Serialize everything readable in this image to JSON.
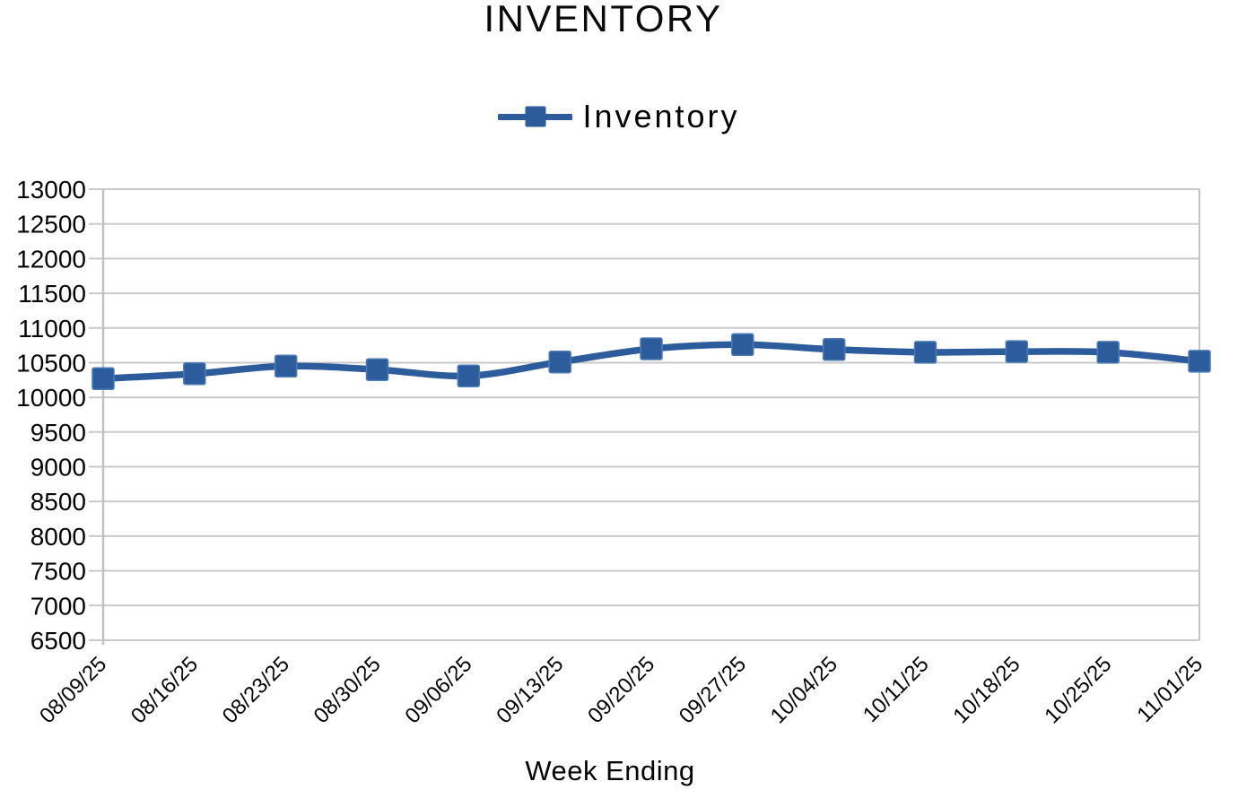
{
  "colors": {
    "series": "#2D5C9C",
    "marker_border": "#4C7CB5",
    "gridline": "#C9C9C9",
    "axis": "#C2C2C2",
    "text": "#050505"
  },
  "chart_data": {
    "type": "line",
    "title": "INVENTORY",
    "xlabel": "Week Ending",
    "ylabel": "",
    "categories": [
      "08/09/25",
      "08/16/25",
      "08/23/25",
      "08/30/25",
      "09/06/25",
      "09/13/25",
      "09/20/25",
      "09/27/25",
      "10/04/25",
      "10/11/25",
      "10/18/25",
      "10/25/25",
      "11/01/25"
    ],
    "series": [
      {
        "name": "Inventory",
        "values": [
          10270,
          10340,
          10450,
          10400,
          10310,
          10510,
          10700,
          10760,
          10690,
          10650,
          10660,
          10650,
          10520
        ]
      }
    ],
    "ylim": [
      6500,
      13000
    ],
    "ytick_step": 500,
    "grid": true,
    "legend_position": "top",
    "line_smooth": true,
    "marker": "square"
  }
}
